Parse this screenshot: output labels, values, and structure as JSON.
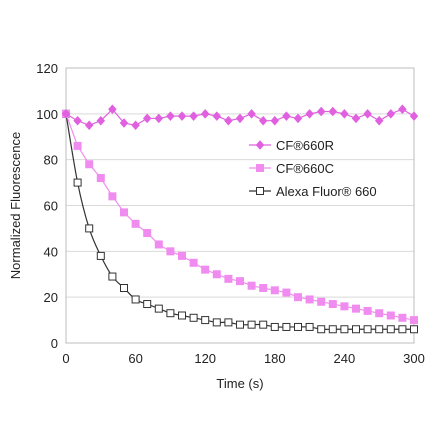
{
  "chart_data": {
    "type": "line",
    "xlabel": "Time (s)",
    "ylabel": "Normalized  Fluorescence",
    "xlim": [
      0,
      300
    ],
    "ylim": [
      0,
      120
    ],
    "xticks": [
      0,
      60,
      120,
      180,
      240,
      300
    ],
    "yticks": [
      0,
      20,
      40,
      60,
      80,
      100,
      120
    ],
    "grid": "horizontal",
    "legend_position": "right-middle",
    "series": [
      {
        "name": "CF®660R",
        "color": "#e060e0",
        "marker": "diamond",
        "x": [
          0,
          10,
          20,
          30,
          40,
          50,
          60,
          70,
          80,
          90,
          100,
          110,
          120,
          130,
          140,
          150,
          160,
          170,
          180,
          190,
          200,
          210,
          220,
          230,
          240,
          250,
          260,
          270,
          280,
          290,
          300
        ],
        "values": [
          100,
          97,
          95,
          97,
          102,
          96,
          95,
          98,
          98,
          99,
          99,
          99,
          100,
          99,
          97,
          98,
          100,
          97,
          97,
          99,
          98,
          100,
          101,
          101,
          100,
          98,
          100,
          97,
          100,
          102,
          99
        ]
      },
      {
        "name": "CF®660C",
        "color": "#f08cf0",
        "marker": "square",
        "x": [
          0,
          10,
          20,
          30,
          40,
          50,
          60,
          70,
          80,
          90,
          100,
          110,
          120,
          130,
          140,
          150,
          160,
          170,
          180,
          190,
          200,
          210,
          220,
          230,
          240,
          250,
          260,
          270,
          280,
          290,
          300
        ],
        "values": [
          100,
          86,
          78,
          72,
          64,
          57,
          52,
          48,
          43,
          40,
          38,
          35,
          32,
          30,
          28,
          27,
          25,
          24,
          23,
          22,
          20,
          19,
          18,
          17,
          16,
          15,
          14,
          13,
          12,
          11,
          10
        ]
      },
      {
        "name": "Alexa Fluor® 660",
        "color": "#333333",
        "marker": "open-square",
        "x": [
          0,
          10,
          20,
          30,
          40,
          50,
          60,
          70,
          80,
          90,
          100,
          110,
          120,
          130,
          140,
          150,
          160,
          170,
          180,
          190,
          200,
          210,
          220,
          230,
          240,
          250,
          260,
          270,
          280,
          290,
          300
        ],
        "values": [
          100,
          70,
          50,
          38,
          29,
          24,
          19,
          17,
          15,
          13,
          12,
          11,
          10,
          9,
          9,
          8,
          8,
          8,
          7,
          7,
          7,
          7,
          6,
          6,
          6,
          6,
          6,
          6,
          6,
          6,
          6
        ]
      }
    ]
  }
}
